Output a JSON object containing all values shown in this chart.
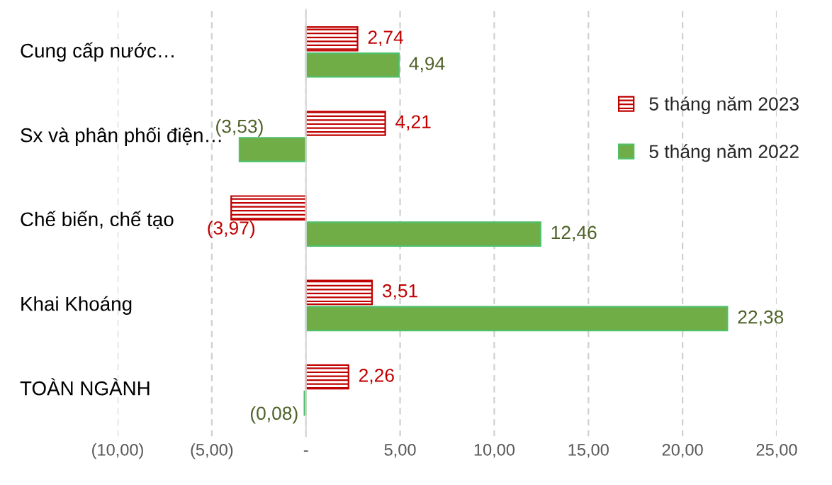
{
  "chart_data": {
    "type": "bar",
    "orientation": "horizontal",
    "categories": [
      "Cung cấp nước…",
      "Sx và phân phối điện…",
      "Chế biến, chế tạo",
      "Khai Khoáng",
      "TOÀN NGÀNH"
    ],
    "series": [
      {
        "name": "5 tháng năm 2023",
        "color": "#c00000",
        "values": [
          2.74,
          4.21,
          -3.97,
          3.51,
          2.26
        ],
        "value_labels": [
          "2,74",
          "4,21",
          "(3,97)",
          "3,51",
          "2,26"
        ]
      },
      {
        "name": "5 tháng năm 2022",
        "color": "#70ad47",
        "values": [
          4.94,
          -3.53,
          12.46,
          22.38,
          -0.08
        ],
        "value_labels": [
          "4,94",
          "(3,53)",
          "12,46",
          "22,38",
          "(0,08)"
        ]
      }
    ],
    "xlim": [
      -10,
      25
    ],
    "xticks": [
      {
        "value": -10,
        "label": "(10,00)"
      },
      {
        "value": -5,
        "label": "(5,00)"
      },
      {
        "value": 0,
        "label": "-"
      },
      {
        "value": 5,
        "label": "5,00"
      },
      {
        "value": 10,
        "label": "10,00"
      },
      {
        "value": 15,
        "label": "15,00"
      },
      {
        "value": 20,
        "label": "20,00"
      },
      {
        "value": 25,
        "label": "25,00"
      }
    ],
    "grid": "x",
    "legend": "right"
  }
}
